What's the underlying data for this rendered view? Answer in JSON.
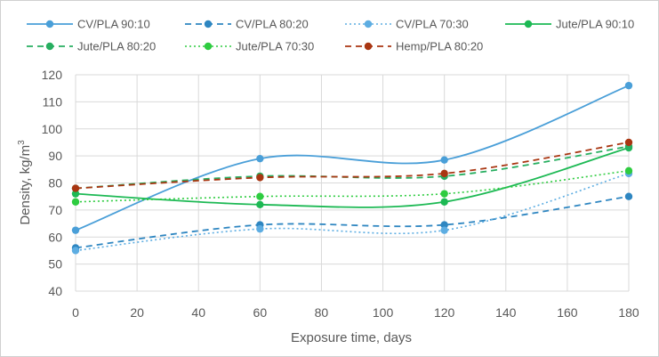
{
  "chart_data": {
    "type": "line",
    "title": "",
    "xlabel": "Exposure time, days",
    "ylabel_prefix": "Density, kg/m",
    "ylabel_superscript": "3",
    "xlim": [
      0,
      180
    ],
    "ylim": [
      40,
      120
    ],
    "x_ticks": [
      0,
      20,
      40,
      60,
      80,
      100,
      120,
      140,
      160,
      180
    ],
    "y_ticks": [
      40,
      50,
      60,
      70,
      80,
      90,
      100,
      110,
      120
    ],
    "grid": true,
    "legend_position": "top",
    "x": [
      0,
      60,
      120,
      180
    ],
    "series": [
      {
        "name": "CV/PLA 90:10",
        "values": [
          62.5,
          89,
          88.5,
          116
        ],
        "color": "#4a9fd8",
        "style": "solid"
      },
      {
        "name": "CV/PLA 80:20",
        "values": [
          56,
          64.5,
          64.5,
          75
        ],
        "color": "#2e86c1",
        "style": "dashed"
      },
      {
        "name": "CV/PLA 70:30",
        "values": [
          55,
          63,
          62.5,
          83.5
        ],
        "color": "#5dade2",
        "style": "dotted"
      },
      {
        "name": "Jute/PLA 90:10",
        "values": [
          76,
          72,
          73,
          93
        ],
        "color": "#1db954",
        "style": "solid"
      },
      {
        "name": "Jute/PLA 80:20",
        "values": [
          78,
          82.5,
          82.5,
          93.5
        ],
        "color": "#27ae60",
        "style": "dashed"
      },
      {
        "name": "Jute/PLA 70:30",
        "values": [
          73,
          75,
          76,
          84.5
        ],
        "color": "#2ecc40",
        "style": "dotted"
      },
      {
        "name": "Hemp/PLA  80:20",
        "values": [
          78,
          82,
          83.5,
          95
        ],
        "color": "#a93612",
        "style": "dashed"
      }
    ]
  }
}
